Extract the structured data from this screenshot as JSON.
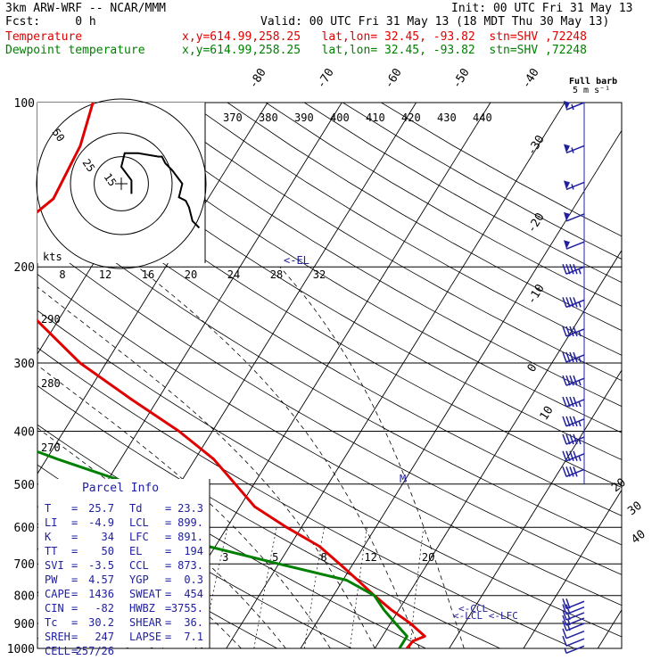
{
  "header": {
    "model": "3km ARW-WRF -- NCAR/MMM",
    "init": "Init: 00 UTC Fri 31 May 13",
    "fcst": "Fcst:     0 h",
    "valid": "Valid: 00 UTC Fri 31 May 13 (18 MDT Thu 30 May 13)",
    "temp_label": "Temperature",
    "temp_info": "x,y=614.99,258.25   lat,lon= 32.45, -93.82  stn=SHV ,72248",
    "dew_label": "Dewpoint temperature",
    "dew_info": "x,y=614.99,258.25   lat,lon= 32.45, -93.82  stn=SHV ,72248"
  },
  "colors": {
    "temperature": "#e00000",
    "dewpoint": "#008000",
    "barbs": "#2020a0",
    "axes": "#000000"
  },
  "chart_data": {
    "type": "line",
    "diagram": "skew-T log-P",
    "pressure_levels": [
      100,
      200,
      300,
      400,
      500,
      600,
      700,
      800,
      900,
      1000
    ],
    "pressure_labels": [
      "100",
      "200",
      "300",
      "400",
      "500",
      "600",
      "700",
      "800",
      "900",
      "1000"
    ],
    "isotherm_labels": [
      "-80",
      "-70",
      "-60",
      "-50",
      "-40",
      "-30",
      "-20",
      "-10",
      "0",
      "10",
      "20",
      "30",
      "40"
    ],
    "theta_labels": [
      "370",
      "380",
      "390",
      "400",
      "410",
      "420",
      "430",
      "440"
    ],
    "theta_left_labels": [
      "290",
      "280",
      "270"
    ],
    "mixing_ratio_labels": [
      "2",
      "3",
      "5",
      "8",
      "12",
      "20"
    ],
    "series": [
      {
        "name": "Temperature",
        "color": "#e00000",
        "points": [
          [
            100,
            -63.5
          ],
          [
            120,
            -61.6
          ],
          [
            150,
            -60.8
          ],
          [
            170,
            -63.2
          ],
          [
            200,
            -61
          ],
          [
            250,
            -53
          ],
          [
            300,
            -43.5
          ],
          [
            350,
            -33.5
          ],
          [
            400,
            -24.5
          ],
          [
            450,
            -17.5
          ],
          [
            500,
            -12.5
          ],
          [
            550,
            -8
          ],
          [
            600,
            -2
          ],
          [
            650,
            4
          ],
          [
            700,
            8.2
          ],
          [
            750,
            12
          ],
          [
            800,
            15.5
          ],
          [
            850,
            19
          ],
          [
            900,
            22.7
          ],
          [
            950,
            25.7
          ],
          [
            970,
            24.5
          ],
          [
            1000,
            24.3
          ]
        ]
      },
      {
        "name": "Dewpoint temperature",
        "color": "#008000",
        "points": [
          [
            100,
            -86
          ],
          [
            150,
            -84
          ],
          [
            170,
            -84.5
          ],
          [
            200,
            -78
          ],
          [
            250,
            -71.5
          ],
          [
            300,
            -65
          ],
          [
            330,
            -64
          ],
          [
            350,
            -60
          ],
          [
            400,
            -51
          ],
          [
            450,
            -38.5
          ],
          [
            500,
            -26.5
          ],
          [
            600,
            -20
          ],
          [
            650,
            -11
          ],
          [
            700,
            0
          ],
          [
            750,
            10.5
          ],
          [
            800,
            15.5
          ],
          [
            850,
            18
          ],
          [
            900,
            20.7
          ],
          [
            950,
            23.3
          ],
          [
            1000,
            23.3
          ]
        ]
      }
    ],
    "wind_barbs": [
      {
        "p": 100,
        "ff": 55
      },
      {
        "p": 120,
        "ff": 55
      },
      {
        "p": 140,
        "ff": 55
      },
      {
        "p": 160,
        "ff": 50
      },
      {
        "p": 180,
        "ff": 50
      },
      {
        "p": 200,
        "ff": 45
      },
      {
        "p": 230,
        "ff": 45
      },
      {
        "p": 260,
        "ff": 45
      },
      {
        "p": 290,
        "ff": 45
      },
      {
        "p": 320,
        "ff": 45
      },
      {
        "p": 350,
        "ff": 45
      },
      {
        "p": 380,
        "ff": 45
      },
      {
        "p": 410,
        "ff": 45
      },
      {
        "p": 440,
        "ff": 45
      },
      {
        "p": 470,
        "ff": 40
      },
      {
        "p": 820,
        "ff": 20
      },
      {
        "p": 840,
        "ff": 20
      },
      {
        "p": 860,
        "ff": 15
      },
      {
        "p": 880,
        "ff": 15
      },
      {
        "p": 900,
        "ff": 15
      },
      {
        "p": 930,
        "ff": 10
      },
      {
        "p": 960,
        "ff": 10
      },
      {
        "p": 990,
        "ff": 5
      }
    ],
    "hodograph": {
      "ring_labels": [
        "50",
        "25",
        "15"
      ],
      "scale_labels": [
        "8",
        "12",
        "16",
        "20",
        "24",
        "28",
        "32"
      ],
      "units_label": "kts",
      "points": [
        [
          3,
          -3
        ],
        [
          3,
          1
        ],
        [
          0,
          5
        ],
        [
          1,
          9
        ],
        [
          5,
          9
        ],
        [
          11,
          8
        ],
        [
          12,
          8
        ],
        [
          13,
          6
        ],
        [
          15,
          4
        ],
        [
          18,
          0
        ],
        [
          17,
          -4
        ],
        [
          19,
          -5
        ],
        [
          20,
          -7
        ],
        [
          21,
          -11
        ],
        [
          22,
          -12
        ],
        [
          23,
          -13
        ]
      ]
    },
    "annotations": {
      "el": "<-EL",
      "ccl": "<-CCL",
      "lcl_lfc": "<-LCL <-LFC",
      "m": "M",
      "wind_scale": "Full barb",
      "wind_units": "5 m s⁻¹"
    },
    "grid": true
  },
  "parcel": {
    "title": "Parcel Info",
    "rows": [
      [
        "T",
        "=",
        "25.7",
        "Td",
        "=",
        "23.3"
      ],
      [
        "LI",
        "=",
        "-4.9",
        "LCL",
        "=",
        "899."
      ],
      [
        "K",
        "=",
        "34",
        "LFC",
        "=",
        "891."
      ],
      [
        "TT",
        "=",
        "50",
        "EL",
        "=",
        "194"
      ],
      [
        "SVI",
        "=",
        "-3.5",
        "CCL",
        "=",
        "873."
      ],
      [
        "PW",
        "=",
        "4.57",
        "YGP",
        "=",
        "0.3"
      ],
      [
        "CAPE",
        "=",
        "1436",
        "SWEAT",
        "=",
        "454"
      ],
      [
        "CIN",
        "=",
        "-82",
        "HWBZ",
        "=",
        "3755."
      ],
      [
        "Tc",
        "=",
        "30.2",
        "SHEAR",
        "=",
        "36."
      ],
      [
        "SREH",
        "=",
        "247",
        "LAPSE",
        "=",
        "7.1"
      ],
      [
        "CELL",
        "=",
        "257/26",
        "",
        "",
        ""
      ]
    ]
  }
}
